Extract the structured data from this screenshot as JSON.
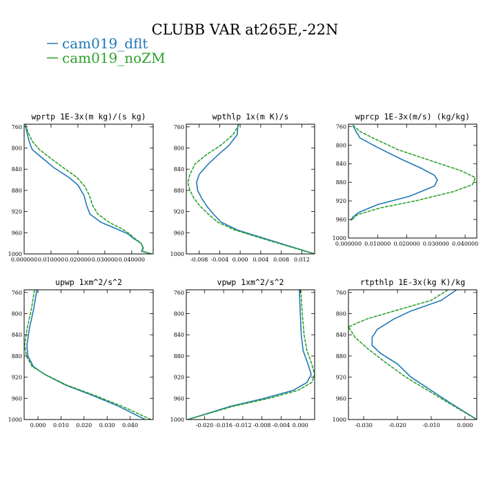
{
  "figure_title": "CLUBB VAR at265E,-22N",
  "legend": [
    {
      "label": "cam019_dflt",
      "color": "#1f77b4"
    },
    {
      "label": "cam019_noZM",
      "color": "#2ca02c"
    }
  ],
  "chart_data": [
    {
      "type": "line",
      "title": "wprtp  1E-3x(m kg)/(s kg)",
      "xlim": [
        0.0,
        0.048
      ],
      "ylim": [
        1000,
        755
      ],
      "xticks": [
        0.0,
        0.01,
        0.02,
        0.03,
        0.04
      ],
      "xtick_labels": [
        "0.000000",
        "0.010000",
        "0.020000",
        "0.030000",
        "0.040000"
      ],
      "yticks": [
        760,
        800,
        840,
        880,
        920,
        960,
        1000
      ],
      "series": [
        {
          "name": "cam019_dflt",
          "values": [
            [
              0.0004,
              755
            ],
            [
              0.001,
              770
            ],
            [
              0.002,
              790
            ],
            [
              0.003,
              803
            ],
            [
              0.007,
              820
            ],
            [
              0.011,
              837
            ],
            [
              0.0165,
              855
            ],
            [
              0.02,
              870
            ],
            [
              0.0223,
              890
            ],
            [
              0.0232,
              908
            ],
            [
              0.0245,
              925
            ],
            [
              0.0285,
              940
            ],
            [
              0.0345,
              953
            ],
            [
              0.0385,
              962
            ],
            [
              0.0405,
              970
            ],
            [
              0.0435,
              980
            ],
            [
              0.0442,
              988
            ],
            [
              0.0437,
              995
            ],
            [
              0.0475,
              1000
            ]
          ]
        },
        {
          "name": "cam019_noZM",
          "values": [
            [
              0.0005,
              755
            ],
            [
              0.0014,
              770
            ],
            [
              0.0031,
              788
            ],
            [
              0.0057,
              803
            ],
            [
              0.01,
              820
            ],
            [
              0.0145,
              837
            ],
            [
              0.0195,
              855
            ],
            [
              0.0225,
              872
            ],
            [
              0.0243,
              890
            ],
            [
              0.0254,
              908
            ],
            [
              0.0275,
              925
            ],
            [
              0.0315,
              940
            ],
            [
              0.0365,
              953
            ],
            [
              0.0392,
              962
            ],
            [
              0.041,
              970
            ],
            [
              0.0435,
              980
            ],
            [
              0.0443,
              988
            ],
            [
              0.0441,
              995
            ],
            [
              0.0475,
              1000
            ]
          ]
        }
      ]
    },
    {
      "type": "line",
      "title": "wpthlp  1x(m K)/s",
      "xlim": [
        -0.0105,
        0.0145
      ],
      "ylim": [
        1000,
        755
      ],
      "xticks": [
        -0.008,
        -0.004,
        0.0,
        0.004,
        0.008,
        0.012
      ],
      "xtick_labels": [
        "-0.008",
        "-0.004",
        "0.000",
        "0.004",
        "0.008",
        "0.012"
      ],
      "yticks": [
        760,
        800,
        840,
        880,
        920,
        960,
        1000
      ],
      "series": [
        {
          "name": "cam019_dflt",
          "values": [
            [
              -0.0004,
              755
            ],
            [
              -0.0006,
              775
            ],
            [
              -0.0022,
              795
            ],
            [
              -0.0042,
              812
            ],
            [
              -0.0062,
              830
            ],
            [
              -0.008,
              850
            ],
            [
              -0.0085,
              865
            ],
            [
              -0.0083,
              880
            ],
            [
              -0.0075,
              895
            ],
            [
              -0.0065,
              910
            ],
            [
              -0.0052,
              925
            ],
            [
              -0.0037,
              940
            ],
            [
              -0.0005,
              955
            ],
            [
              0.0045,
              970
            ],
            [
              0.0095,
              985
            ],
            [
              0.0145,
              1000
            ]
          ]
        },
        {
          "name": "cam019_noZM",
          "values": [
            [
              -0.0002,
              755
            ],
            [
              -0.0014,
              775
            ],
            [
              -0.0038,
              795
            ],
            [
              -0.0065,
              812
            ],
            [
              -0.0088,
              830
            ],
            [
              -0.0098,
              850
            ],
            [
              -0.0102,
              865
            ],
            [
              -0.0098,
              880
            ],
            [
              -0.009,
              895
            ],
            [
              -0.0078,
              910
            ],
            [
              -0.0062,
              925
            ],
            [
              -0.0044,
              940
            ],
            [
              -0.001,
              955
            ],
            [
              0.004,
              970
            ],
            [
              0.0092,
              985
            ],
            [
              0.0145,
              1000
            ]
          ]
        }
      ]
    },
    {
      "type": "line",
      "title": "wprcp  1E-3x(m/s) (kg/kg)",
      "xlim": [
        0.0,
        0.044
      ],
      "ylim": [
        1000,
        755
      ],
      "xticks": [
        0.0,
        0.01,
        0.02,
        0.03,
        0.04
      ],
      "xtick_labels": [
        "0.000000",
        "0.010000",
        "0.020000",
        "0.030000",
        "0.040000"
      ],
      "yticks": [
        760,
        800,
        840,
        880,
        920,
        960,
        1000
      ],
      "series": [
        {
          "name": "cam019_dflt",
          "values": [
            [
              0.0015,
              757
            ],
            [
              0.0025,
              770
            ],
            [
              0.004,
              785
            ],
            [
              0.01,
              805
            ],
            [
              0.018,
              830
            ],
            [
              0.025,
              850
            ],
            [
              0.0295,
              865
            ],
            [
              0.0305,
              875
            ],
            [
              0.0295,
              888
            ],
            [
              0.021,
              910
            ],
            [
              0.01,
              928
            ],
            [
              0.0035,
              945
            ],
            [
              0.0015,
              955
            ],
            [
              0.0008,
              962
            ]
          ]
        },
        {
          "name": "cam019_noZM",
          "values": [
            [
              0.0015,
              757
            ],
            [
              0.0038,
              770
            ],
            [
              0.0085,
              785
            ],
            [
              0.017,
              810
            ],
            [
              0.029,
              835
            ],
            [
              0.0385,
              855
            ],
            [
              0.0435,
              870
            ],
            [
              0.0425,
              885
            ],
            [
              0.036,
              900
            ],
            [
              0.023,
              920
            ],
            [
              0.011,
              935
            ],
            [
              0.003,
              950
            ],
            [
              0.001,
              962
            ]
          ]
        }
      ]
    },
    {
      "type": "line",
      "title": "upwp  1xm^2/s^2",
      "xlim": [
        -0.006,
        0.05
      ],
      "ylim": [
        1000,
        755
      ],
      "xticks": [
        0.0,
        0.01,
        0.02,
        0.03,
        0.04
      ],
      "xtick_labels": [
        "0.000",
        "0.010",
        "0.020",
        "0.030",
        "0.040"
      ],
      "yticks": [
        760,
        800,
        840,
        880,
        920,
        960,
        1000
      ],
      "series": [
        {
          "name": "cam019_dflt",
          "values": [
            [
              -0.0005,
              755
            ],
            [
              -0.0018,
              790
            ],
            [
              -0.0038,
              830
            ],
            [
              -0.0048,
              860
            ],
            [
              -0.0044,
              880
            ],
            [
              -0.002,
              900
            ],
            [
              0.003,
              915
            ],
            [
              0.012,
              935
            ],
            [
              0.024,
              955
            ],
            [
              0.035,
              975
            ],
            [
              0.0465,
              1000
            ]
          ]
        },
        {
          "name": "cam019_noZM",
          "values": [
            [
              -0.0015,
              755
            ],
            [
              -0.0028,
              790
            ],
            [
              -0.0048,
              830
            ],
            [
              -0.0058,
              860
            ],
            [
              -0.005,
              880
            ],
            [
              -0.0025,
              900
            ],
            [
              0.0032,
              915
            ],
            [
              0.0125,
              935
            ],
            [
              0.025,
              955
            ],
            [
              0.0365,
              975
            ],
            [
              0.049,
              1000
            ]
          ]
        }
      ]
    },
    {
      "type": "line",
      "title": "vpwp  1xm^2/s^2",
      "xlim": [
        -0.0238,
        0.003
      ],
      "ylim": [
        1000,
        755
      ],
      "xticks": [
        -0.02,
        -0.016,
        -0.012,
        -0.008,
        -0.004,
        0.0
      ],
      "xtick_labels": [
        "-0.020",
        "-0.016",
        "-0.012",
        "-0.008",
        "-0.004",
        "0.000"
      ],
      "yticks": [
        760,
        800,
        840,
        880,
        920,
        960,
        1000
      ],
      "series": [
        {
          "name": "cam019_dflt",
          "values": [
            [
              -0.0002,
              755
            ],
            [
              0.0,
              800
            ],
            [
              0.0002,
              840
            ],
            [
              0.0006,
              870
            ],
            [
              0.0016,
              895
            ],
            [
              0.0023,
              915
            ],
            [
              0.0014,
              930
            ],
            [
              -0.0015,
              945
            ],
            [
              -0.0075,
              960
            ],
            [
              -0.0145,
              975
            ],
            [
              -0.0235,
              1000
            ]
          ]
        },
        {
          "name": "cam019_noZM",
          "values": [
            [
              0.0001,
              755
            ],
            [
              0.0004,
              800
            ],
            [
              0.0008,
              840
            ],
            [
              0.0014,
              870
            ],
            [
              0.0024,
              895
            ],
            [
              0.003,
              915
            ],
            [
              0.0024,
              930
            ],
            [
              -0.0005,
              945
            ],
            [
              -0.0065,
              960
            ],
            [
              -0.014,
              975
            ],
            [
              -0.0235,
              1000
            ]
          ]
        }
      ]
    },
    {
      "type": "line",
      "title": "rtpthlp  1E-3x(kg K)/kg",
      "xlim": [
        -0.0345,
        0.0035
      ],
      "ylim": [
        1000,
        755
      ],
      "xticks": [
        -0.03,
        -0.02,
        -0.01,
        0.0
      ],
      "xtick_labels": [
        "-0.030",
        "-0.020",
        "-0.010",
        "0.000"
      ],
      "yticks": [
        760,
        800,
        840,
        880,
        920,
        960,
        1000
      ],
      "series": [
        {
          "name": "cam019_dflt",
          "values": [
            [
              -0.0025,
              755
            ],
            [
              -0.007,
              775
            ],
            [
              -0.016,
              795
            ],
            [
              -0.021,
              810
            ],
            [
              -0.026,
              830
            ],
            [
              -0.0275,
              845
            ],
            [
              -0.0275,
              860
            ],
            [
              -0.025,
              875
            ],
            [
              -0.02,
              895
            ],
            [
              -0.016,
              920
            ],
            [
              -0.01,
              945
            ],
            [
              -0.004,
              970
            ],
            [
              0.0035,
              1000
            ]
          ]
        },
        {
          "name": "cam019_noZM",
          "values": [
            [
              -0.005,
              755
            ],
            [
              -0.01,
              775
            ],
            [
              -0.021,
              795
            ],
            [
              -0.029,
              810
            ],
            [
              -0.0345,
              825
            ],
            [
              -0.0325,
              845
            ],
            [
              -0.029,
              865
            ],
            [
              -0.024,
              890
            ],
            [
              -0.0175,
              920
            ],
            [
              -0.011,
              945
            ],
            [
              -0.0045,
              970
            ],
            [
              0.0035,
              1000
            ]
          ]
        }
      ]
    }
  ]
}
